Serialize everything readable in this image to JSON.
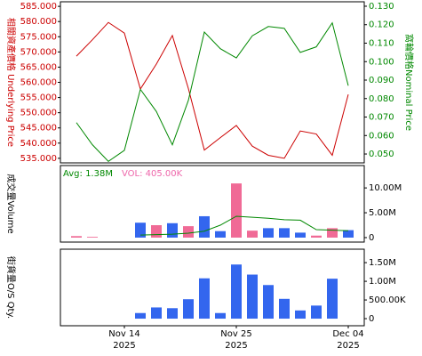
{
  "chart_data": [
    {
      "type": "line",
      "y_label": "相關資產價格 Underlying Price",
      "y2_label": "窩輪價格Nominal Price",
      "ylim": [
        533.5,
        586.5
      ],
      "yticks": [
        {
          "value": 535,
          "label": "535.000"
        },
        {
          "value": 540,
          "label": "540.000"
        },
        {
          "value": 545,
          "label": "545.000"
        },
        {
          "value": 550,
          "label": "550.000"
        },
        {
          "value": 555,
          "label": "555.000"
        },
        {
          "value": 560,
          "label": "560.000"
        },
        {
          "value": 565,
          "label": "565.000"
        },
        {
          "value": 570,
          "label": "570.000"
        },
        {
          "value": 575,
          "label": "575.000"
        },
        {
          "value": 580,
          "label": "580.000"
        },
        {
          "value": 585,
          "label": "585.000"
        }
      ],
      "y2lim": [
        0.0452,
        0.1324
      ],
      "y2ticks": [
        {
          "value": 0.05,
          "label": "0.050"
        },
        {
          "value": 0.06,
          "label": "0.060"
        },
        {
          "value": 0.07,
          "label": "0.070"
        },
        {
          "value": 0.08,
          "label": "0.080"
        },
        {
          "value": 0.09,
          "label": "0.090"
        },
        {
          "value": 0.1,
          "label": "0.100"
        },
        {
          "value": 0.11,
          "label": "0.110"
        },
        {
          "value": 0.12,
          "label": "0.120"
        },
        {
          "value": 0.13,
          "label": "0.130"
        }
      ],
      "series": [
        {
          "color": "#cc0000",
          "axis": "y",
          "values": [
            568.6,
            574.0,
            579.7,
            576.2,
            557.8,
            566.0,
            575.4,
            558.0,
            537.7,
            541.8,
            545.8,
            539.0,
            536.0,
            535.0,
            544.0,
            543.0,
            536.0,
            556.0
          ]
        },
        {
          "color": "#008800",
          "axis": "y2",
          "values": [
            0.067,
            0.055,
            0.046,
            0.052,
            0.085,
            0.073,
            0.055,
            0.079,
            0.116,
            0.107,
            0.102,
            0.114,
            0.119,
            0.118,
            0.105,
            0.108,
            0.121,
            0.087
          ]
        }
      ]
    },
    {
      "type": "bar",
      "y_label": "成交量Volume",
      "annotations": [
        "Avg: 1.38M",
        "VOL: 405.00K"
      ],
      "annotation_colors": [
        "#008800",
        "#ee66aa"
      ],
      "ylim": [
        -900000,
        14500000
      ],
      "yticks": [
        0,
        {
          "value": 5000000,
          "label": "5.00M"
        },
        {
          "value": 10000000,
          "label": "10.00M"
        }
      ],
      "series": [
        {
          "colors": [
            "#f06a96",
            "#f06a96",
            "#3366ee",
            "#3366ee",
            "#3366ee",
            "#f06a96",
            "#3366ee",
            "#f06a96",
            "#3366ee",
            "#3366ee",
            "#f06a96",
            "#f06a96",
            "#3366ee",
            "#3366ee",
            "#3366ee",
            "#f06a96",
            "#f06a96",
            "#3366ee"
          ],
          "values": [
            300000,
            150000,
            null,
            null,
            3000000,
            2500000,
            2900000,
            2300000,
            4300000,
            1300000,
            10900000,
            1400000,
            1900000,
            1900000,
            1000000,
            400000,
            1900000,
            1500000
          ]
        },
        {
          "color": "#008800",
          "values": [
            null,
            null,
            null,
            null,
            500000,
            600000,
            700000,
            900000,
            1300000,
            2500000,
            4300000,
            4100000,
            3900000,
            3600000,
            3500000,
            1600000,
            1500000,
            1380000
          ]
        }
      ]
    },
    {
      "type": "bar",
      "y_label": "街貨量O/S Qty.",
      "categories": [
        null,
        null,
        null,
        "Nov 14\n2025",
        null,
        null,
        null,
        null,
        null,
        null,
        "Nov 25\n2025",
        null,
        null,
        null,
        null,
        null,
        null,
        "Dec 04\n2025"
      ],
      "ylim": [
        -190000,
        1860000
      ],
      "yticks": [
        0,
        {
          "value": 500000,
          "label": "500.00K"
        },
        {
          "value": 1000000,
          "label": "1.00M"
        },
        {
          "value": 1500000,
          "label": "1.50M"
        }
      ],
      "color": "#3366ee",
      "values": [
        null,
        null,
        null,
        null,
        150000,
        300000,
        280000,
        520000,
        1080000,
        150000,
        1450000,
        1180000,
        900000,
        530000,
        220000,
        350000,
        1070000,
        null
      ]
    }
  ]
}
